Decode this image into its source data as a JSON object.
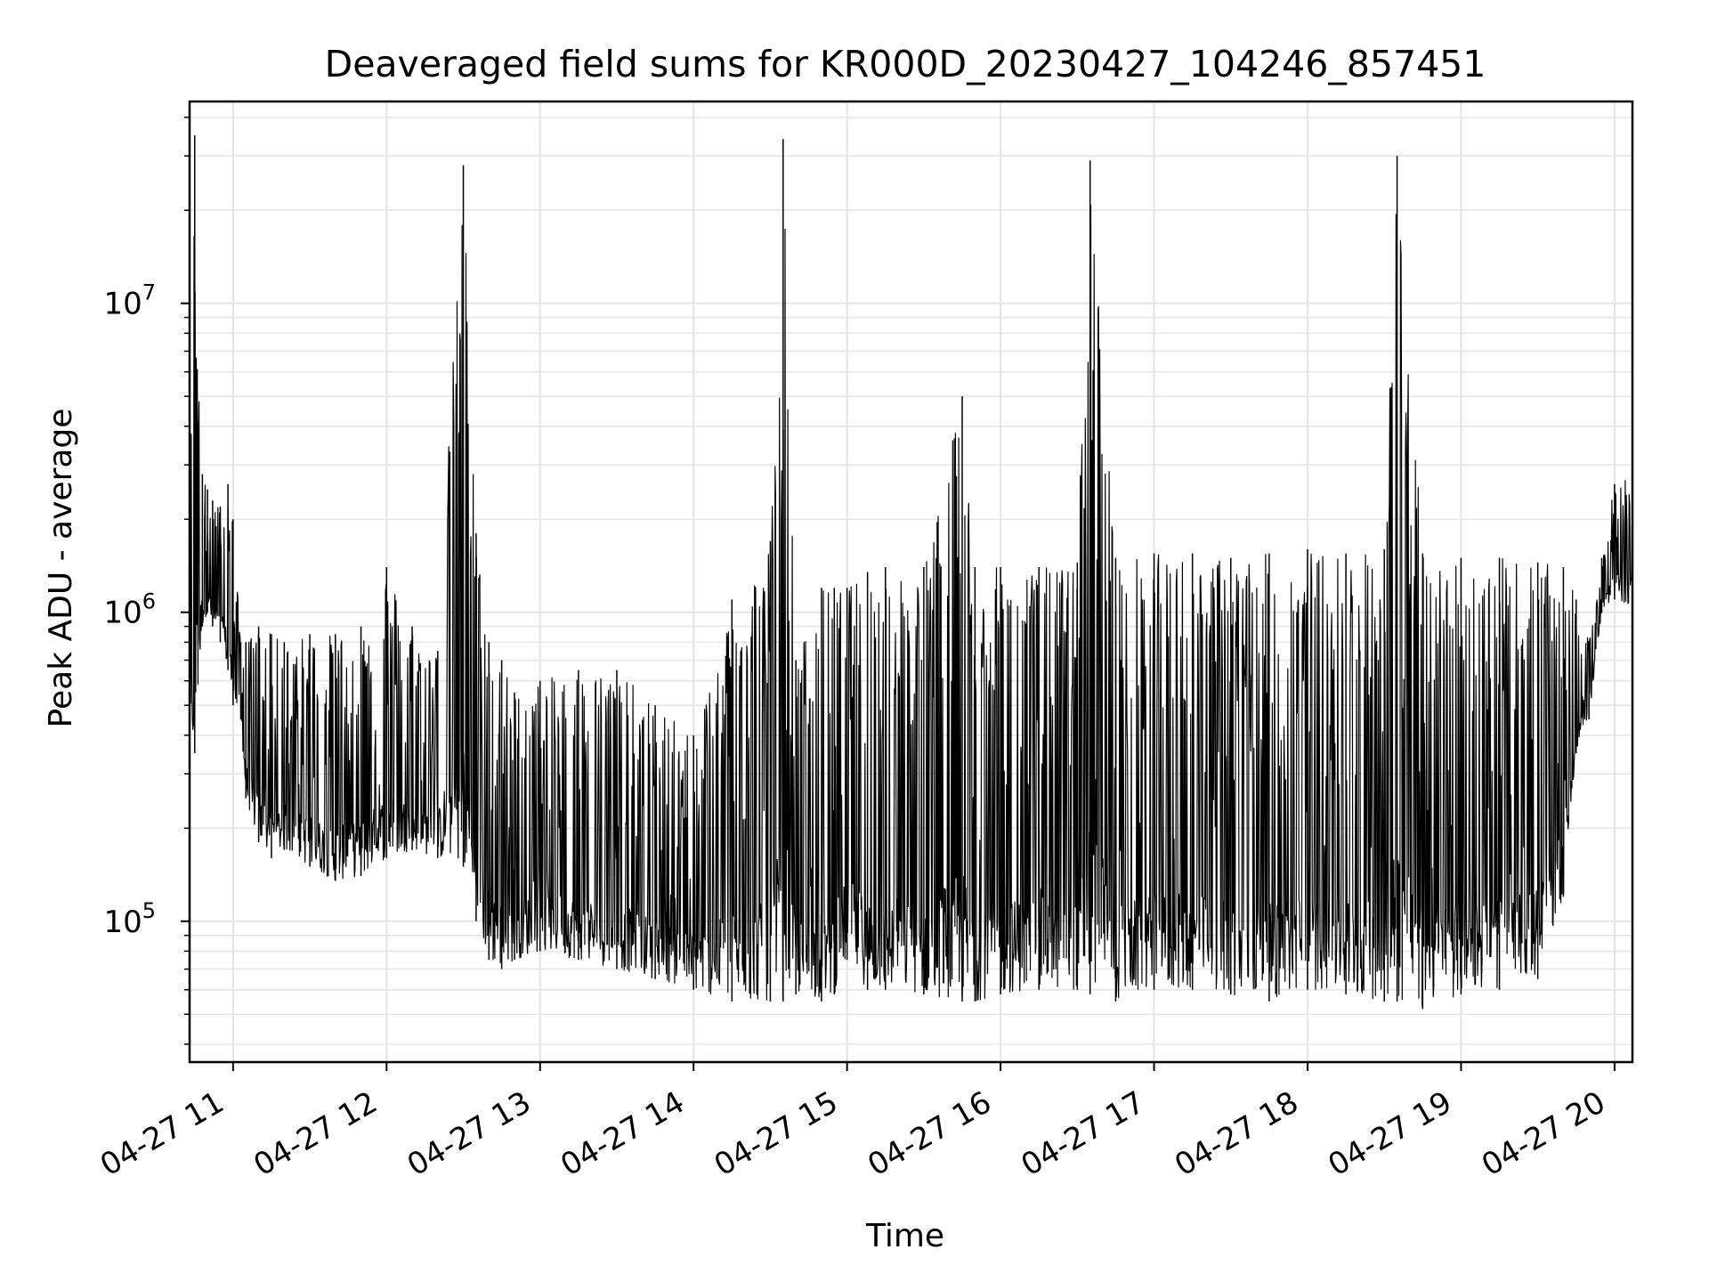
{
  "chart_data": {
    "type": "line",
    "title": "Deaveraged field sums for KR000D_20230427_104246_857451",
    "xlabel": "Time",
    "ylabel": "Peak ADU - average",
    "yscale": "log",
    "ylim": [
      35000,
      45000000
    ],
    "xlim": [
      "2023-04-27 10:43",
      "2023-04-27 20:07"
    ],
    "grid": true,
    "line_color": "#000000",
    "y_ticks": [
      {
        "value": 100000,
        "base": "10",
        "exp": "5"
      },
      {
        "value": 1000000,
        "base": "10",
        "exp": "6"
      },
      {
        "value": 10000000,
        "base": "10",
        "exp": "7"
      }
    ],
    "x_ticks": [
      {
        "value": "2023-04-27 11:00",
        "label": "04-27 11"
      },
      {
        "value": "2023-04-27 12:00",
        "label": "04-27 12"
      },
      {
        "value": "2023-04-27 13:00",
        "label": "04-27 13"
      },
      {
        "value": "2023-04-27 14:00",
        "label": "04-27 14"
      },
      {
        "value": "2023-04-27 15:00",
        "label": "04-27 15"
      },
      {
        "value": "2023-04-27 16:00",
        "label": "04-27 16"
      },
      {
        "value": "2023-04-27 17:00",
        "label": "04-27 17"
      },
      {
        "value": "2023-04-27 18:00",
        "label": "04-27 18"
      },
      {
        "value": "2023-04-27 19:00",
        "label": "04-27 19"
      },
      {
        "value": "2023-04-27 20:00",
        "label": "04-27 20"
      }
    ],
    "series": [
      {
        "x": [
          "2023-04-27 10:43",
          "2023-04-27 10:45",
          "2023-04-27 10:48",
          "2023-04-27 10:50",
          "2023-04-27 10:52",
          "2023-04-27 10:55",
          "2023-04-27 10:58",
          "2023-04-27 11:00",
          "2023-04-27 11:03",
          "2023-04-27 11:05",
          "2023-04-27 11:10",
          "2023-04-27 11:15",
          "2023-04-27 11:20",
          "2023-04-27 11:30",
          "2023-04-27 11:40",
          "2023-04-27 11:50",
          "2023-04-27 12:00",
          "2023-04-27 12:10",
          "2023-04-27 12:20",
          "2023-04-27 12:30",
          "2023-04-27 12:35",
          "2023-04-27 12:40",
          "2023-04-27 12:45",
          "2023-04-27 12:50",
          "2023-04-27 13:00",
          "2023-04-27 13:15",
          "2023-04-27 13:30",
          "2023-04-27 13:45",
          "2023-04-27 14:00",
          "2023-04-27 14:15",
          "2023-04-27 14:30",
          "2023-04-27 14:35",
          "2023-04-27 14:40",
          "2023-04-27 14:50",
          "2023-04-27 14:55",
          "2023-04-27 15:00",
          "2023-04-27 15:08",
          "2023-04-27 15:15",
          "2023-04-27 15:30",
          "2023-04-27 15:45",
          "2023-04-27 15:50",
          "2023-04-27 16:00",
          "2023-04-27 16:15",
          "2023-04-27 16:30",
          "2023-04-27 16:35",
          "2023-04-27 16:45",
          "2023-04-27 17:00",
          "2023-04-27 17:15",
          "2023-04-27 17:30",
          "2023-04-27 17:45",
          "2023-04-27 18:00",
          "2023-04-27 18:15",
          "2023-04-27 18:30",
          "2023-04-27 18:35",
          "2023-04-27 18:45",
          "2023-04-27 19:00",
          "2023-04-27 19:15",
          "2023-04-27 19:30",
          "2023-04-27 19:40",
          "2023-04-27 19:45",
          "2023-04-27 19:50",
          "2023-04-27 19:55",
          "2023-04-27 20:00",
          "2023-04-27 20:07"
        ],
        "upper": [
          1500000,
          35000000,
          2800000,
          2500000,
          2300000,
          2200000,
          2600000,
          2000000,
          800000,
          800000,
          900000,
          850000,
          800000,
          850000,
          850000,
          900000,
          1400000,
          900000,
          750000,
          28000000,
          1800000,
          800000,
          700000,
          550000,
          600000,
          650000,
          650000,
          500000,
          400000,
          1100000,
          1700000,
          34000000,
          700000,
          1200000,
          1200000,
          1200000,
          1350000,
          1400000,
          1400000,
          5000000,
          1400000,
          1400000,
          1400000,
          1450000,
          29000000,
          1500000,
          1550000,
          1550000,
          1500000,
          1550000,
          1600000,
          1550000,
          1600000,
          30000000,
          1550000,
          1500000,
          1500000,
          1450000,
          1400000,
          1100000,
          800000,
          1500000,
          2600000,
          2800000
        ],
        "lower": [
          380000,
          350000,
          900000,
          1000000,
          900000,
          800000,
          650000,
          500000,
          450000,
          250000,
          180000,
          160000,
          170000,
          150000,
          135000,
          140000,
          160000,
          170000,
          160000,
          150000,
          100000,
          75000,
          70000,
          75000,
          80000,
          75000,
          70000,
          65000,
          60000,
          55000,
          55000,
          55000,
          58000,
          55000,
          58000,
          75000,
          60000,
          60000,
          58000,
          55000,
          55000,
          58000,
          60000,
          60000,
          58000,
          55000,
          60000,
          60000,
          58000,
          55000,
          60000,
          58000,
          55000,
          55000,
          52000,
          58000,
          60000,
          65000,
          120000,
          350000,
          450000,
          1000000,
          1100000,
          1050000
        ]
      }
    ]
  }
}
